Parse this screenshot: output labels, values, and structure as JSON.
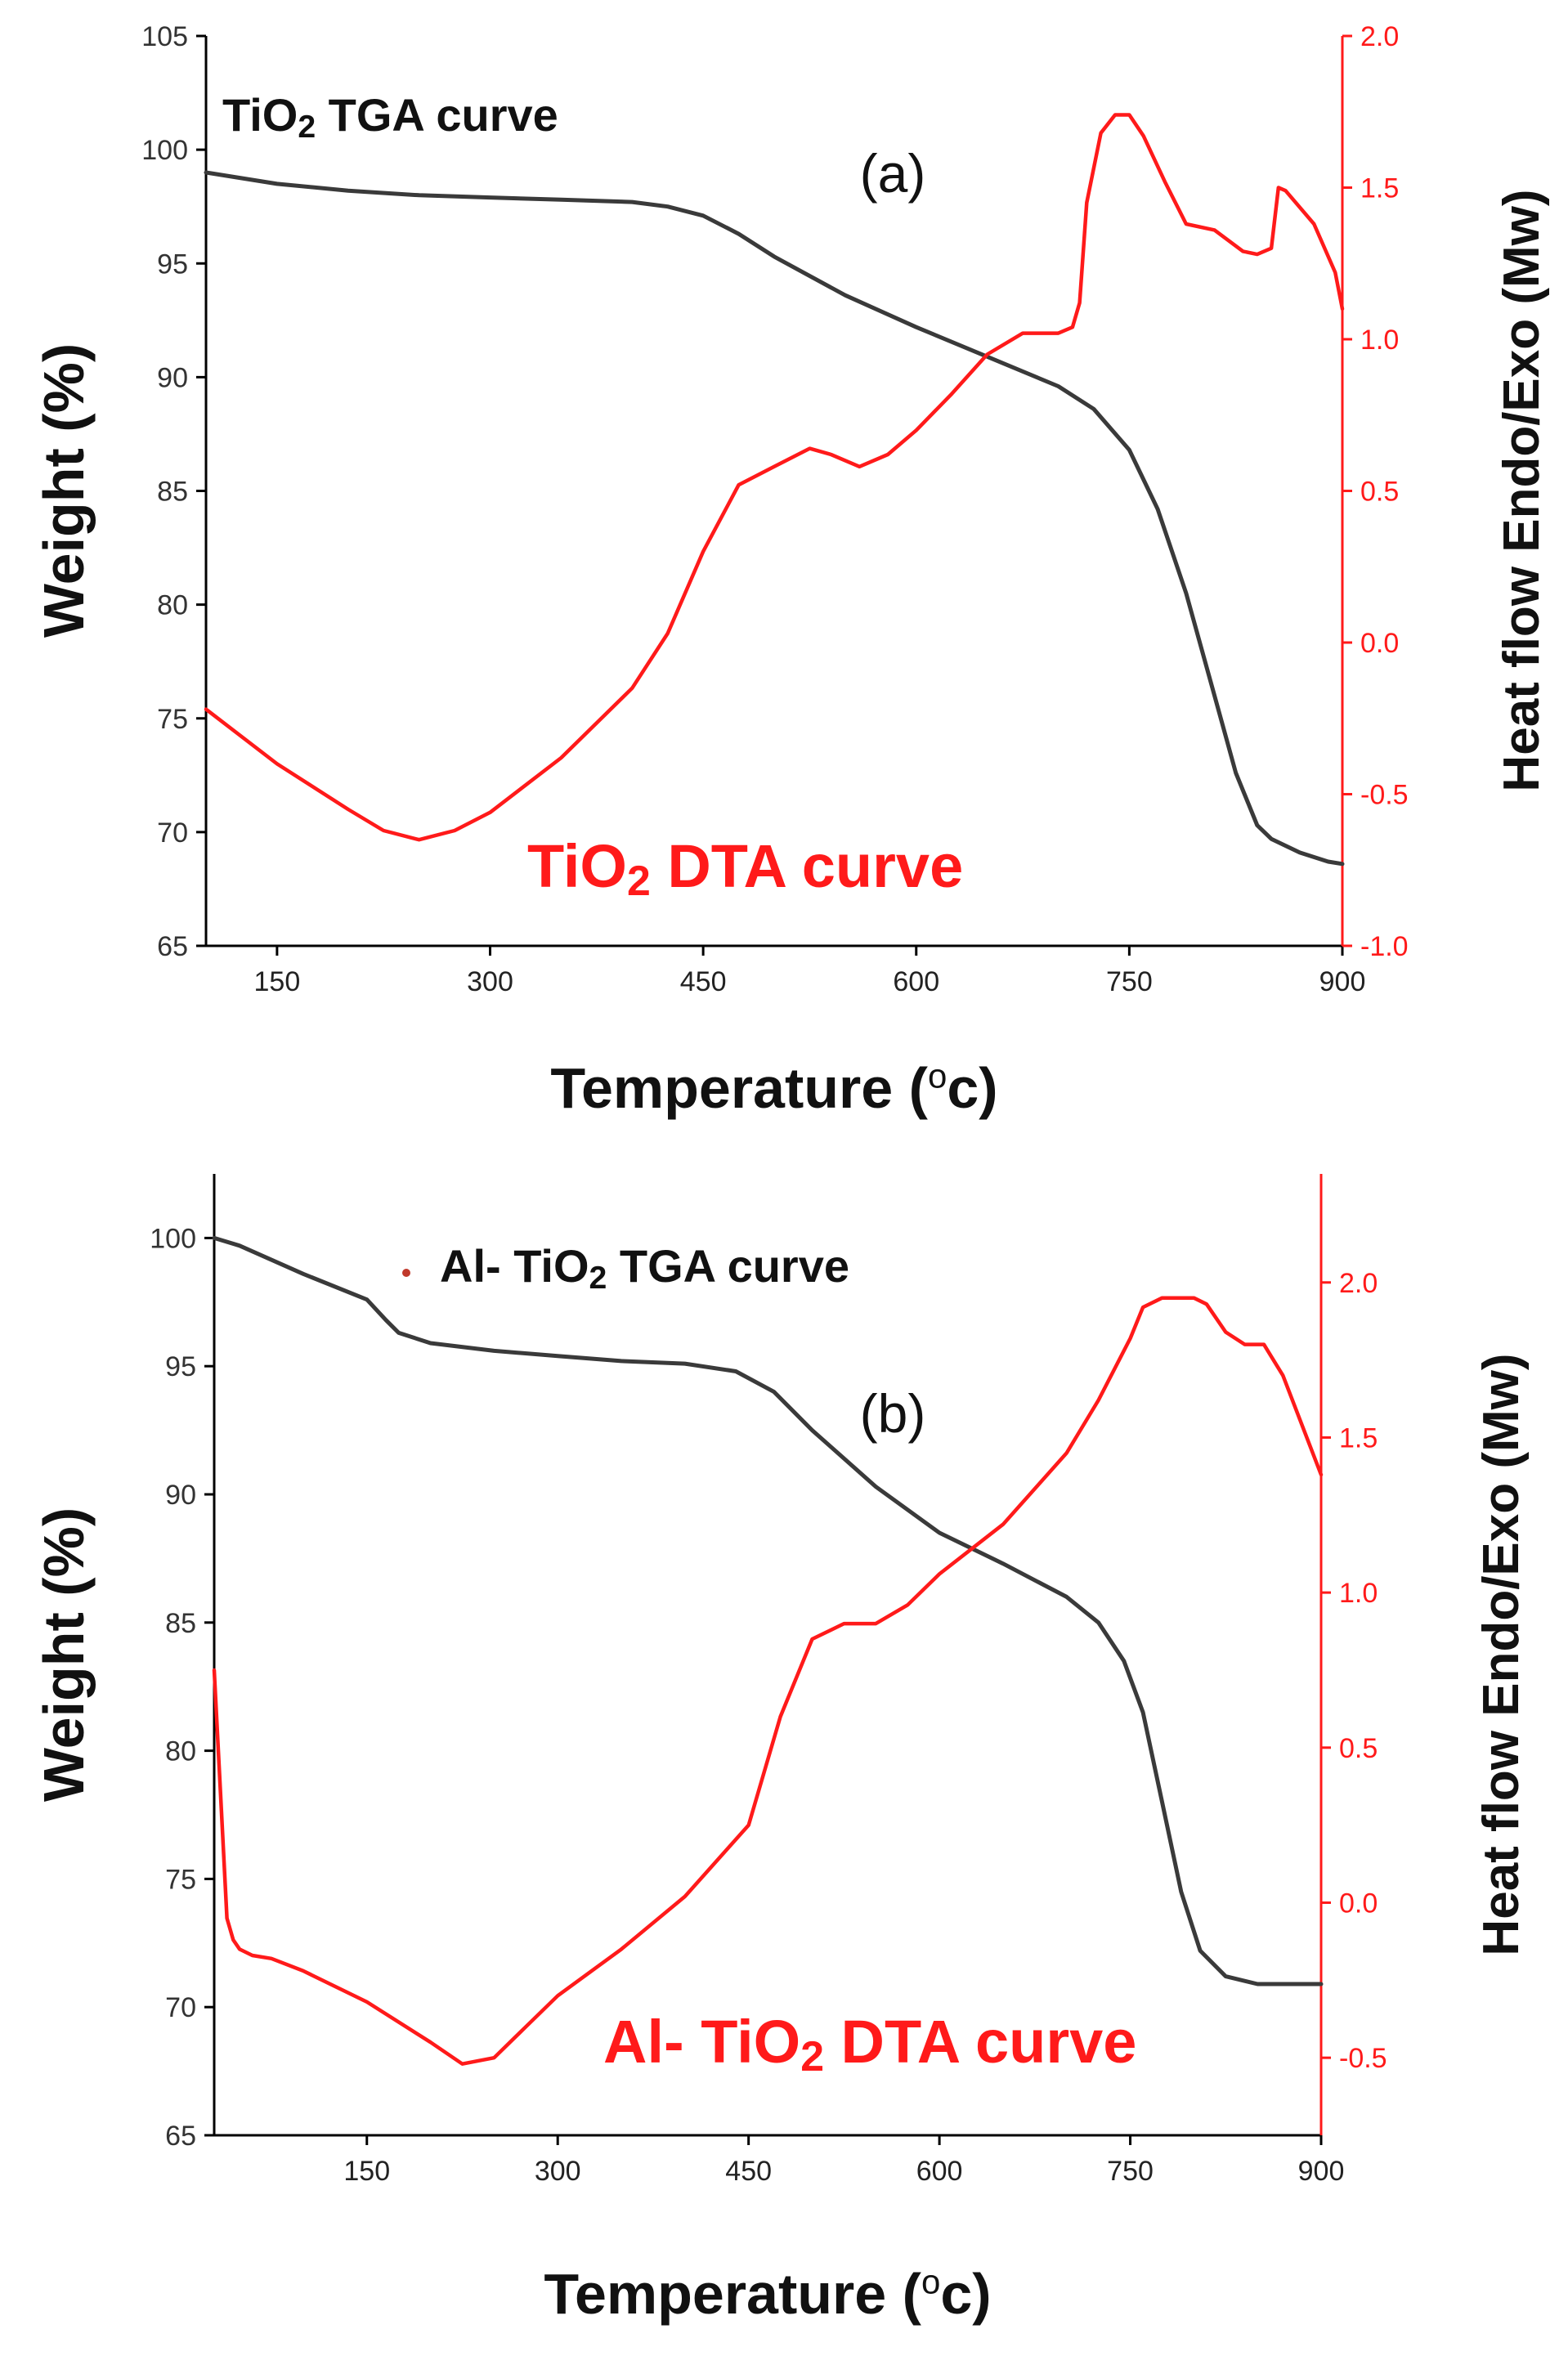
{
  "colors": {
    "tga": "#3a3a3a",
    "dta": "#ff1a1a",
    "axis": "#000000"
  },
  "chart_data": [
    {
      "type": "line",
      "panel_label": "(a)",
      "xlabel": "Temperature (oc)",
      "xlabel_main": "Temperature (",
      "xlabel_sup": "o",
      "xlabel_tail": "c)",
      "ylabel": "Weight (%)",
      "ylabel_right": "Heat flow Endo/Exo (Mw)",
      "xlim": [
        100,
        900
      ],
      "ylim": [
        65,
        105
      ],
      "ylim_right": [
        -1.0,
        2.0
      ],
      "xticks": [
        "150",
        "300",
        "450",
        "600",
        "750",
        "900"
      ],
      "yticks": [
        "65",
        "70",
        "75",
        "80",
        "85",
        "90",
        "95",
        "100",
        "105"
      ],
      "yticks_right": [
        "-1.0",
        "-0.5",
        "0.0",
        "0.5",
        "1.0",
        "1.5",
        "2.0"
      ],
      "tga_label_pre": "TiO",
      "tga_label_sub": "2",
      "tga_label_post": " TGA curve",
      "dta_label_pre": "TiO",
      "dta_label_sub": "2",
      "dta_label_post": " DTA curve",
      "series": [
        {
          "name": "TiO2 TGA curve",
          "axis": "left",
          "x": [
            100,
            150,
            200,
            250,
            300,
            350,
            400,
            425,
            450,
            475,
            500,
            550,
            600,
            650,
            700,
            725,
            750,
            770,
            790,
            810,
            825,
            840,
            850,
            870,
            890,
            900
          ],
          "y": [
            99.0,
            98.5,
            98.2,
            98.0,
            97.9,
            97.8,
            97.7,
            97.5,
            97.1,
            96.3,
            95.3,
            93.6,
            92.2,
            90.9,
            89.6,
            88.6,
            86.8,
            84.2,
            80.5,
            76.0,
            72.6,
            70.3,
            69.7,
            69.1,
            68.7,
            68.6
          ]
        },
        {
          "name": "TiO2 DTA curve",
          "axis": "right",
          "x": [
            100,
            150,
            200,
            225,
            250,
            275,
            300,
            350,
            400,
            425,
            450,
            475,
            500,
            525,
            540,
            560,
            580,
            600,
            625,
            650,
            675,
            700,
            710,
            715,
            720,
            730,
            740,
            750,
            760,
            775,
            790,
            810,
            830,
            840,
            850,
            855,
            860,
            880,
            895,
            900
          ],
          "y": [
            -0.22,
            -0.4,
            -0.55,
            -0.62,
            -0.65,
            -0.62,
            -0.56,
            -0.38,
            -0.15,
            0.03,
            0.3,
            0.52,
            0.58,
            0.64,
            0.62,
            0.58,
            0.62,
            0.7,
            0.82,
            0.95,
            1.02,
            1.02,
            1.04,
            1.12,
            1.45,
            1.68,
            1.74,
            1.74,
            1.67,
            1.52,
            1.38,
            1.36,
            1.29,
            1.28,
            1.3,
            1.5,
            1.49,
            1.38,
            1.22,
            1.1
          ]
        }
      ]
    },
    {
      "type": "line",
      "panel_label": "(b)",
      "xlabel": "Temperature (oc)",
      "xlabel_main": "Temperature (",
      "xlabel_sup": "o",
      "xlabel_tail": "c)",
      "ylabel": "Weight (%)",
      "ylabel_right": "Heat flow Endo/Exo (Mw)",
      "xlim": [
        30,
        900
      ],
      "ylim": [
        65,
        102.5
      ],
      "ylim_right": [
        -0.75,
        2.35
      ],
      "xticks": [
        "150",
        "300",
        "450",
        "600",
        "750",
        "900"
      ],
      "yticks": [
        "65",
        "70",
        "75",
        "80",
        "85",
        "90",
        "95",
        "100"
      ],
      "yticks_right": [
        "-0.5",
        "0.0",
        "0.5",
        "1.0",
        "1.5",
        "2.0"
      ],
      "tga_label_pre": "Al- TiO",
      "tga_label_sub": "2",
      "tga_label_post": " TGA curve",
      "dta_label_pre": "Al- TiO",
      "dta_label_sub": "2",
      "dta_label_post": " DTA curve",
      "series": [
        {
          "name": "Al- TiO2 TGA curve",
          "axis": "left",
          "x": [
            30,
            50,
            100,
            150,
            165,
            175,
            200,
            250,
            300,
            350,
            400,
            440,
            470,
            500,
            550,
            600,
            650,
            700,
            725,
            745,
            760,
            775,
            790,
            805,
            825,
            850,
            900
          ],
          "y": [
            100.0,
            99.7,
            98.6,
            97.6,
            96.8,
            96.3,
            95.9,
            95.6,
            95.4,
            95.2,
            95.1,
            94.8,
            94.0,
            92.5,
            90.3,
            88.5,
            87.3,
            86.0,
            85.0,
            83.5,
            81.5,
            78.0,
            74.5,
            72.2,
            71.2,
            70.9,
            70.9
          ]
        },
        {
          "name": "Al- TiO2 DTA curve",
          "axis": "right",
          "x": [
            30,
            35,
            40,
            45,
            50,
            60,
            75,
            100,
            150,
            200,
            225,
            250,
            275,
            300,
            350,
            400,
            450,
            475,
            500,
            525,
            550,
            575,
            600,
            650,
            700,
            725,
            750,
            760,
            775,
            790,
            800,
            810,
            825,
            840,
            855,
            870,
            900
          ],
          "y": [
            0.75,
            0.35,
            -0.05,
            -0.12,
            -0.15,
            -0.17,
            -0.18,
            -0.22,
            -0.32,
            -0.45,
            -0.52,
            -0.5,
            -0.4,
            -0.3,
            -0.15,
            0.02,
            0.25,
            0.6,
            0.85,
            0.9,
            0.9,
            0.96,
            1.06,
            1.22,
            1.45,
            1.62,
            1.82,
            1.92,
            1.95,
            1.95,
            1.95,
            1.93,
            1.84,
            1.8,
            1.8,
            1.7,
            1.38
          ]
        }
      ]
    }
  ]
}
